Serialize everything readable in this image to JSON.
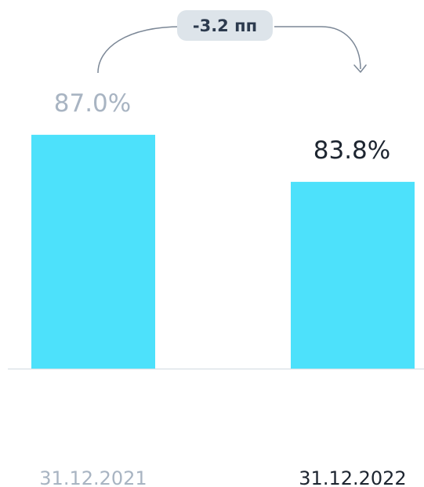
{
  "chart_data": {
    "type": "bar",
    "categories": [
      "31.12.2021",
      "31.12.2022"
    ],
    "values": [
      87.0,
      83.8
    ],
    "value_labels": [
      "87.0%",
      "83.8%"
    ],
    "change_label": "-3.2 пп",
    "grid": false,
    "legend": "none"
  },
  "colors": {
    "bar": "#4de1fb",
    "muted_text": "#a8b4c2",
    "strong_text": "#1d2530",
    "badge_bg": "#dde4ea",
    "badge_text": "#2c3a4e",
    "arrow": "#7b8796",
    "axis": "#dde3e8"
  }
}
